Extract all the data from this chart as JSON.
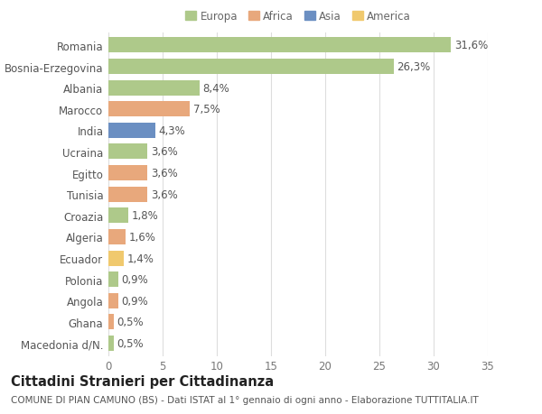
{
  "countries": [
    "Romania",
    "Bosnia-Erzegovina",
    "Albania",
    "Marocco",
    "India",
    "Ucraina",
    "Egitto",
    "Tunisia",
    "Croazia",
    "Algeria",
    "Ecuador",
    "Polonia",
    "Angola",
    "Ghana",
    "Macedonia d/N."
  ],
  "values": [
    31.6,
    26.3,
    8.4,
    7.5,
    4.3,
    3.6,
    3.6,
    3.6,
    1.8,
    1.6,
    1.4,
    0.9,
    0.9,
    0.5,
    0.5
  ],
  "labels": [
    "31,6%",
    "26,3%",
    "8,4%",
    "7,5%",
    "4,3%",
    "3,6%",
    "3,6%",
    "3,6%",
    "1,8%",
    "1,6%",
    "1,4%",
    "0,9%",
    "0,9%",
    "0,5%",
    "0,5%"
  ],
  "colors": [
    "#aec98a",
    "#aec98a",
    "#aec98a",
    "#e8a87c",
    "#6b8fc2",
    "#aec98a",
    "#e8a87c",
    "#e8a87c",
    "#aec98a",
    "#e8a87c",
    "#f0c96e",
    "#aec98a",
    "#e8a87c",
    "#e8a87c",
    "#aec98a"
  ],
  "legend_labels": [
    "Europa",
    "Africa",
    "Asia",
    "America"
  ],
  "legend_colors": [
    "#aec98a",
    "#e8a87c",
    "#6b8fc2",
    "#f0c96e"
  ],
  "title": "Cittadini Stranieri per Cittadinanza",
  "subtitle": "COMUNE DI PIAN CAMUNO (BS) - Dati ISTAT al 1° gennaio di ogni anno - Elaborazione TUTTITALIA.IT",
  "xlim": [
    0,
    35
  ],
  "xticks": [
    0,
    5,
    10,
    15,
    20,
    25,
    30,
    35
  ],
  "background_color": "#ffffff",
  "grid_color": "#dddddd",
  "bar_height": 0.72,
  "label_fontsize": 8.5,
  "tick_fontsize": 8.5,
  "title_fontsize": 10.5,
  "subtitle_fontsize": 7.5
}
